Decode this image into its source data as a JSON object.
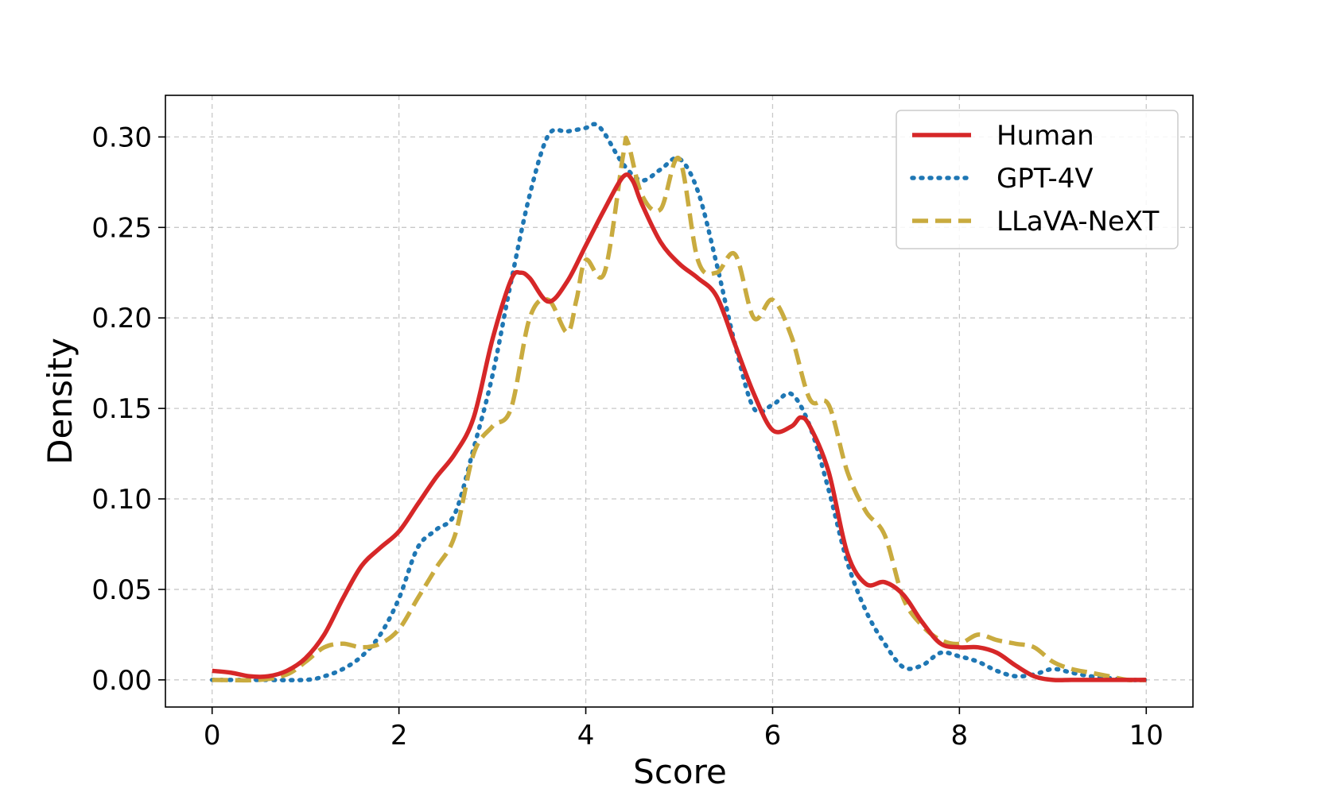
{
  "chart_data": {
    "type": "line",
    "title": "",
    "xlabel": "Score",
    "ylabel": "Density",
    "xlim": [
      -0.5,
      10.5
    ],
    "ylim": [
      -0.015,
      0.323
    ],
    "xticks": [
      0,
      2,
      4,
      6,
      8,
      10
    ],
    "xtick_labels": [
      "0",
      "2",
      "4",
      "6",
      "8",
      "10"
    ],
    "yticks": [
      0.0,
      0.05,
      0.1,
      0.15,
      0.2,
      0.25,
      0.3
    ],
    "ytick_labels": [
      "0.00",
      "0.05",
      "0.10",
      "0.15",
      "0.20",
      "0.25",
      "0.30"
    ],
    "grid": true,
    "legend_position": "top-right",
    "series": [
      {
        "name": "Human",
        "color": "#d62728",
        "style": "solid",
        "x": [
          0,
          0.2,
          0.4,
          0.6,
          0.8,
          1.0,
          1.2,
          1.4,
          1.6,
          1.8,
          2.0,
          2.2,
          2.4,
          2.6,
          2.8,
          3.0,
          3.2,
          3.3,
          3.4,
          3.6,
          3.8,
          4.0,
          4.2,
          4.4,
          4.5,
          4.6,
          4.8,
          5.0,
          5.2,
          5.4,
          5.6,
          5.8,
          6.0,
          6.2,
          6.3,
          6.4,
          6.6,
          6.8,
          7.0,
          7.2,
          7.4,
          7.6,
          7.8,
          8.0,
          8.2,
          8.4,
          8.6,
          8.8,
          9.0,
          9.2,
          9.4,
          9.6,
          9.8,
          10.0
        ],
        "y": [
          0.005,
          0.004,
          0.002,
          0.002,
          0.005,
          0.012,
          0.025,
          0.045,
          0.063,
          0.073,
          0.082,
          0.097,
          0.112,
          0.125,
          0.145,
          0.188,
          0.221,
          0.225,
          0.222,
          0.209,
          0.22,
          0.24,
          0.26,
          0.278,
          0.276,
          0.263,
          0.242,
          0.23,
          0.222,
          0.212,
          0.185,
          0.158,
          0.138,
          0.14,
          0.145,
          0.14,
          0.115,
          0.07,
          0.053,
          0.054,
          0.047,
          0.032,
          0.02,
          0.018,
          0.018,
          0.015,
          0.008,
          0.002,
          0.0,
          0.0,
          0.0,
          0.0,
          0.0,
          0.0
        ]
      },
      {
        "name": "GPT-4V",
        "color": "#1f77b4",
        "style": "dotted",
        "x": [
          0,
          0.5,
          1.0,
          1.2,
          1.4,
          1.6,
          1.8,
          2.0,
          2.2,
          2.4,
          2.6,
          2.8,
          3.0,
          3.2,
          3.4,
          3.6,
          3.8,
          4.0,
          4.1,
          4.2,
          4.4,
          4.6,
          4.8,
          5.0,
          5.2,
          5.4,
          5.6,
          5.8,
          6.0,
          6.2,
          6.4,
          6.6,
          6.8,
          7.0,
          7.2,
          7.4,
          7.6,
          7.8,
          8.0,
          8.2,
          8.4,
          8.6,
          8.8,
          9.0,
          9.2,
          9.4,
          9.6,
          9.8,
          10.0
        ],
        "y": [
          0.0,
          0.0,
          0.0,
          0.002,
          0.006,
          0.013,
          0.025,
          0.045,
          0.073,
          0.083,
          0.092,
          0.128,
          0.168,
          0.22,
          0.268,
          0.301,
          0.303,
          0.305,
          0.307,
          0.302,
          0.285,
          0.276,
          0.282,
          0.288,
          0.27,
          0.23,
          0.185,
          0.15,
          0.152,
          0.158,
          0.14,
          0.105,
          0.065,
          0.038,
          0.02,
          0.007,
          0.008,
          0.015,
          0.013,
          0.01,
          0.005,
          0.002,
          0.003,
          0.006,
          0.004,
          0.002,
          0.001,
          0.0,
          0.0
        ]
      },
      {
        "name": "LLaVA-NeXT",
        "color": "#c9ab3f",
        "style": "dashed",
        "x": [
          0,
          0.5,
          0.8,
          1.0,
          1.2,
          1.4,
          1.6,
          1.8,
          2.0,
          2.2,
          2.4,
          2.6,
          2.8,
          3.0,
          3.2,
          3.4,
          3.6,
          3.8,
          3.9,
          4.0,
          4.2,
          4.4,
          4.45,
          4.6,
          4.8,
          5.0,
          5.2,
          5.4,
          5.6,
          5.8,
          6.0,
          6.2,
          6.4,
          6.6,
          6.8,
          7.0,
          7.2,
          7.4,
          7.6,
          7.8,
          8.0,
          8.2,
          8.4,
          8.6,
          8.8,
          9.0,
          9.2,
          9.4,
          9.6,
          9.8,
          10.0
        ],
        "y": [
          0.0,
          0.0,
          0.003,
          0.01,
          0.018,
          0.02,
          0.018,
          0.02,
          0.028,
          0.045,
          0.062,
          0.08,
          0.125,
          0.14,
          0.15,
          0.2,
          0.21,
          0.192,
          0.21,
          0.232,
          0.225,
          0.29,
          0.297,
          0.268,
          0.26,
          0.288,
          0.232,
          0.225,
          0.235,
          0.2,
          0.21,
          0.19,
          0.155,
          0.152,
          0.115,
          0.093,
          0.08,
          0.045,
          0.03,
          0.022,
          0.02,
          0.025,
          0.022,
          0.02,
          0.018,
          0.01,
          0.006,
          0.004,
          0.002,
          0.0,
          0.0
        ]
      }
    ]
  }
}
